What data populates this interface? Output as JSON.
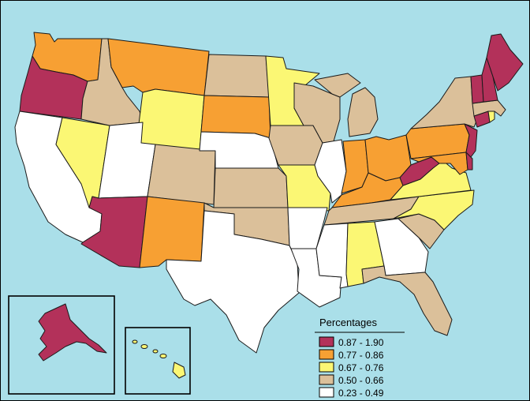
{
  "legend": {
    "title": "Percentages",
    "classes": [
      {
        "label": "0.87 - 1.90",
        "color": "#b3315a"
      },
      {
        "label": "0.77 - 0.86",
        "color": "#f7a033"
      },
      {
        "label": "0.67 - 0.76",
        "color": "#fbf774"
      },
      {
        "label": "0.50 - 0.66",
        "color": "#dbc09a"
      },
      {
        "label": "0.23 - 0.49",
        "color": "#ffffff"
      }
    ]
  },
  "colors": {
    "water": "#aadfe9",
    "border": "#1a1a1a"
  },
  "states": [
    {
      "name": "Washington",
      "class": 1
    },
    {
      "name": "Oregon",
      "class": 0
    },
    {
      "name": "California",
      "class": 4
    },
    {
      "name": "Nevada",
      "class": 2
    },
    {
      "name": "Idaho",
      "class": 3
    },
    {
      "name": "Montana",
      "class": 1
    },
    {
      "name": "Wyoming",
      "class": 2
    },
    {
      "name": "Utah",
      "class": 4
    },
    {
      "name": "Arizona",
      "class": 0
    },
    {
      "name": "Colorado",
      "class": 3
    },
    {
      "name": "New Mexico",
      "class": 1
    },
    {
      "name": "North Dakota",
      "class": 3
    },
    {
      "name": "South Dakota",
      "class": 1
    },
    {
      "name": "Nebraska",
      "class": 4
    },
    {
      "name": "Kansas",
      "class": 3
    },
    {
      "name": "Oklahoma",
      "class": 3
    },
    {
      "name": "Texas",
      "class": 4
    },
    {
      "name": "Minnesota",
      "class": 2
    },
    {
      "name": "Iowa",
      "class": 3
    },
    {
      "name": "Missouri",
      "class": 2
    },
    {
      "name": "Arkansas",
      "class": 4
    },
    {
      "name": "Louisiana",
      "class": 4
    },
    {
      "name": "Wisconsin",
      "class": 3
    },
    {
      "name": "Illinois",
      "class": 4
    },
    {
      "name": "Michigan",
      "class": 3
    },
    {
      "name": "Indiana",
      "class": 1
    },
    {
      "name": "Ohio",
      "class": 1
    },
    {
      "name": "Kentucky",
      "class": 1
    },
    {
      "name": "Tennessee",
      "class": 3
    },
    {
      "name": "Mississippi",
      "class": 4
    },
    {
      "name": "Alabama",
      "class": 2
    },
    {
      "name": "Georgia",
      "class": 4
    },
    {
      "name": "Florida",
      "class": 3
    },
    {
      "name": "South Carolina",
      "class": 3
    },
    {
      "name": "North Carolina",
      "class": 2
    },
    {
      "name": "Virginia",
      "class": 2
    },
    {
      "name": "West Virginia",
      "class": 0
    },
    {
      "name": "Maryland",
      "class": 1
    },
    {
      "name": "Delaware",
      "class": 0
    },
    {
      "name": "Pennsylvania",
      "class": 1
    },
    {
      "name": "New Jersey",
      "class": 0
    },
    {
      "name": "New York",
      "class": 3
    },
    {
      "name": "Connecticut",
      "class": 0
    },
    {
      "name": "Rhode Island",
      "class": 2
    },
    {
      "name": "Massachusetts",
      "class": 3
    },
    {
      "name": "Vermont",
      "class": 0
    },
    {
      "name": "New Hampshire",
      "class": 0
    },
    {
      "name": "Maine",
      "class": 0
    },
    {
      "name": "Alaska",
      "class": 0
    },
    {
      "name": "Hawaii",
      "class": 2
    }
  ]
}
